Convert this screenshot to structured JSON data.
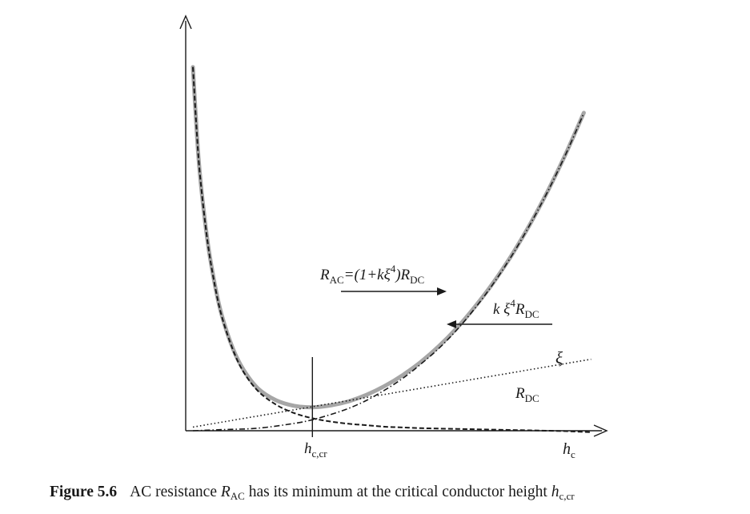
{
  "chart_data": {
    "type": "line",
    "x_axis_label": "h",
    "x_axis_label_sub": "c",
    "x_ticks": [
      {
        "main": "h",
        "sub": "c,cr",
        "x": 0.35
      }
    ],
    "xlim": [
      0,
      1.15
    ],
    "ylim": [
      0,
      1.0
    ],
    "grid": false,
    "series": [
      {
        "name": "R_AC = (1 + k ξ^4) R_DC",
        "style": "solid-gray-thick",
        "color": "#a6a6a6",
        "x": [
          0.02,
          0.03,
          0.04,
          0.06,
          0.08,
          0.1,
          0.13,
          0.16,
          0.2,
          0.25,
          0.3,
          0.35,
          0.4,
          0.45,
          0.5,
          0.55,
          0.6,
          0.65,
          0.7,
          0.75,
          0.8,
          0.85,
          0.9,
          0.95,
          1.0,
          1.05,
          1.1
        ],
        "y": [
          0.992,
          0.822,
          0.692,
          0.52,
          0.401,
          0.314,
          0.225,
          0.166,
          0.115,
          0.083,
          0.068,
          0.064,
          0.069,
          0.08,
          0.098,
          0.122,
          0.152,
          0.188,
          0.231,
          0.281,
          0.339,
          0.404,
          0.478,
          0.561,
          0.653,
          0.755,
          0.867
        ]
      },
      {
        "name": "R_DC",
        "style": "dashed",
        "color": "#1a1a1a",
        "x": [
          0.02,
          0.03,
          0.04,
          0.06,
          0.08,
          0.1,
          0.13,
          0.16,
          0.2,
          0.25,
          0.3,
          0.35,
          0.4,
          0.45,
          0.5,
          0.55,
          0.6,
          0.65,
          0.7,
          0.75,
          0.8,
          0.85,
          0.9,
          0.95,
          1.0,
          1.05,
          1.12
        ],
        "y": [
          0.992,
          0.822,
          0.692,
          0.519,
          0.399,
          0.311,
          0.222,
          0.16,
          0.108,
          0.071,
          0.048,
          0.034,
          0.025,
          0.019,
          0.015,
          0.011,
          0.009,
          0.007,
          0.006,
          0.005,
          0.004,
          0.003,
          0.002,
          0.001,
          0.0,
          -0.001,
          -0.004
        ]
      },
      {
        "name": "k ξ^4 R_DC",
        "style": "dash-dot",
        "color": "#1a1a1a",
        "x": [
          0.02,
          0.1,
          0.2,
          0.3,
          0.35,
          0.4,
          0.45,
          0.5,
          0.55,
          0.6,
          0.65,
          0.7,
          0.75,
          0.8,
          0.85,
          0.9,
          0.95,
          1.0,
          1.05,
          1.1
        ],
        "y": [
          0.0,
          0.003,
          0.007,
          0.02,
          0.03,
          0.044,
          0.061,
          0.083,
          0.111,
          0.143,
          0.182,
          0.225,
          0.276,
          0.335,
          0.401,
          0.476,
          0.56,
          0.652,
          0.754,
          0.866
        ]
      },
      {
        "name": "ξ",
        "style": "dotted",
        "color": "#1a1a1a",
        "x": [
          0.02,
          1.12
        ],
        "y": [
          0.01,
          0.195
        ]
      }
    ],
    "annotations": [
      {
        "main": "R",
        "sub": "AC",
        "rest": "=(1+kξ",
        "sup": "4",
        "close": ")R",
        "sub2": "DC"
      },
      {
        "main": "k ξ",
        "sup": "4",
        "rest": "R",
        "sub": "DC"
      },
      {
        "text": "ξ"
      },
      {
        "main": "R",
        "sub": "DC"
      }
    ]
  },
  "caption": {
    "figure_number": "Figure 5.6",
    "text_before": "AC resistance ",
    "var1": "R",
    "var1_sub": "AC",
    "text_after": " has its minimum at the critical conductor height ",
    "var2": "h",
    "var2_sub": "c,cr"
  }
}
